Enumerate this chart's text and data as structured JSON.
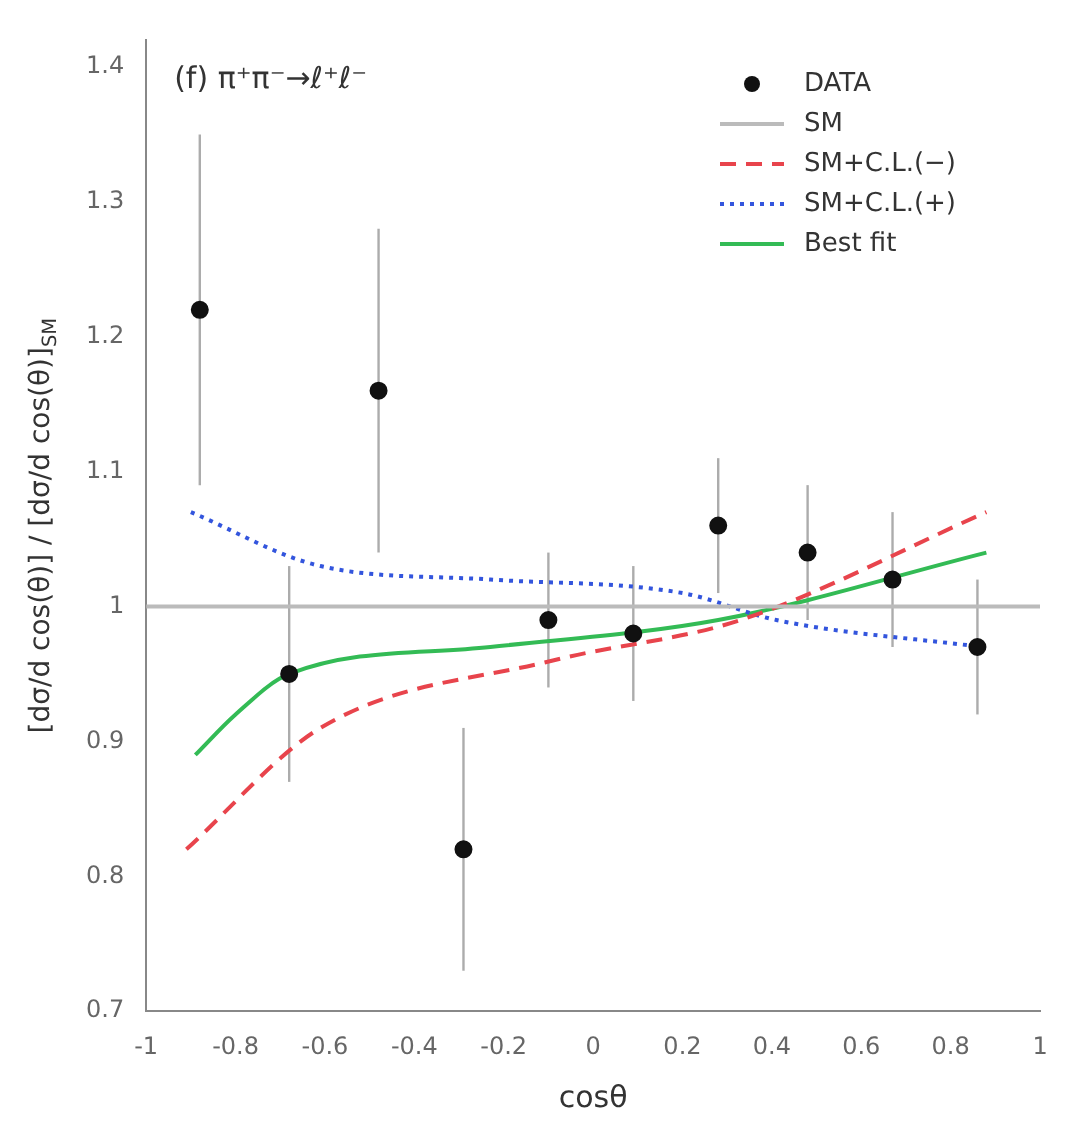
{
  "chart_data": {
    "type": "line",
    "xlabel": "cosθ",
    "ylabel": "[dσ/d cos(θ)] / [dσ/d cos(θ)]$_{SM}$",
    "annotations": [
      "(f) π⁺π⁻→ℓ⁺ℓ⁻"
    ],
    "xlim": [
      -1,
      1
    ],
    "xticks": [
      -1,
      -0.8,
      -0.6,
      -0.4,
      -0.2,
      0,
      0.2,
      0.4,
      0.6,
      0.8,
      1
    ],
    "ylim": [
      0.7,
      1.42
    ],
    "yticks": [
      0.7,
      0.8,
      0.9,
      1,
      1.1,
      1.2,
      1.3,
      1.4
    ],
    "legend": "top right",
    "grid": false,
    "series": [
      {
        "name": "DATA",
        "type": "scatter",
        "marker": "circle",
        "color": "#111111",
        "x": [
          -0.88,
          -0.68,
          -0.48,
          -0.29,
          -0.1,
          0.09,
          0.28,
          0.48,
          0.67,
          0.86
        ],
        "values": [
          1.22,
          0.95,
          1.16,
          0.82,
          0.99,
          0.98,
          1.06,
          1.04,
          1.02,
          0.97
        ],
        "errors": [
          0.13,
          0.08,
          0.12,
          0.09,
          0.05,
          0.05,
          0.05,
          0.05,
          0.05,
          0.05
        ]
      },
      {
        "name": "SM",
        "color": "#bbbbbb",
        "line_style": "solid",
        "x": [
          -1,
          1
        ],
        "values": [
          1,
          1
        ]
      },
      {
        "name": "SM+C.L.(−)",
        "color": "#e8444c",
        "line_style": "dashed",
        "x": [
          -0.91,
          -0.61,
          -0.09,
          0.33,
          0.88
        ],
        "values": [
          0.82,
          0.91,
          0.96,
          0.99,
          1.07
        ]
      },
      {
        "name": "SM+C.L.(+)",
        "color": "#3355dd",
        "line_style": "dotted",
        "x": [
          -0.9,
          -0.61,
          -0.23,
          0.2,
          0.41,
          0.87
        ],
        "values": [
          1.07,
          1.03,
          1.02,
          1.01,
          0.99,
          0.97
        ]
      },
      {
        "name": "Best fit",
        "color": "#33bb55",
        "line_style": "solid",
        "x": [
          -0.89,
          -0.8,
          -0.68,
          -0.23,
          0.28,
          0.88
        ],
        "values": [
          0.89,
          0.92,
          0.95,
          0.97,
          0.99,
          1.04
        ]
      }
    ]
  }
}
